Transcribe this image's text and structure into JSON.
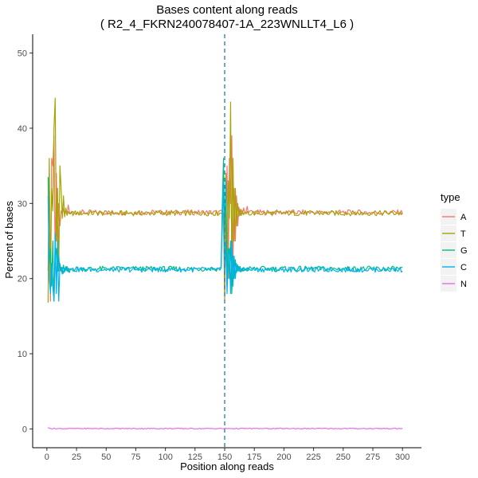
{
  "chart_data": {
    "type": "line",
    "title": "Bases content along reads",
    "subtitle": "( R2_4_FKRN240078407-1A_223WNLLT4_L6 )",
    "xlabel": "Position along reads",
    "ylabel": "Percent of bases",
    "xlim": [
      -12,
      316
    ],
    "ylim": [
      -2.5,
      52.5
    ],
    "x_ticks": [
      0,
      25,
      50,
      75,
      100,
      125,
      150,
      175,
      200,
      225,
      250,
      275,
      300
    ],
    "y_ticks": [
      0,
      10,
      20,
      30,
      40,
      50
    ],
    "vline_x": 150,
    "grid": false,
    "legend": {
      "title": "type",
      "position": "right"
    },
    "series": [
      {
        "name": "A",
        "color": "#F8766D",
        "start": [
          [
            1,
            21
          ],
          [
            2,
            33
          ],
          [
            3,
            17
          ],
          [
            4,
            36
          ],
          [
            5,
            35
          ],
          [
            6,
            39
          ],
          [
            7,
            22
          ],
          [
            8,
            34
          ],
          [
            9,
            24
          ],
          [
            10,
            30
          ],
          [
            11,
            27
          ],
          [
            12,
            29
          ],
          [
            13,
            28.6
          ],
          [
            14,
            29.3
          ],
          [
            15,
            28.4
          ],
          [
            16,
            29
          ],
          [
            17,
            28.5
          ],
          [
            18,
            29.8
          ],
          [
            19,
            28.9
          ],
          [
            20,
            28.6
          ]
        ],
        "mid": [
          [
            150,
            18
          ],
          [
            151,
            27
          ],
          [
            152,
            35
          ],
          [
            153,
            20
          ],
          [
            154,
            36
          ],
          [
            155,
            30
          ],
          [
            156,
            39
          ],
          [
            157,
            22
          ],
          [
            158,
            32
          ],
          [
            159,
            25
          ],
          [
            160,
            31
          ],
          [
            161,
            27
          ],
          [
            162,
            29.5
          ],
          [
            163,
            28.4
          ],
          [
            164,
            29.2
          ],
          [
            165,
            28.6
          ],
          [
            166,
            29.4
          ],
          [
            167,
            28.7
          ],
          [
            168,
            28.9
          ],
          [
            169,
            29.6
          ],
          [
            170,
            28.7
          ]
        ],
        "base": 28.8
      },
      {
        "name": "T",
        "color": "#A3A500",
        "start": [
          [
            1,
            16.8
          ],
          [
            2,
            36
          ],
          [
            3,
            20
          ],
          [
            4,
            32
          ],
          [
            5,
            29
          ],
          [
            6,
            40
          ],
          [
            7,
            44
          ],
          [
            8,
            25
          ],
          [
            9,
            32
          ],
          [
            10,
            21
          ],
          [
            11,
            35
          ],
          [
            12,
            32
          ],
          [
            13,
            28
          ],
          [
            14,
            31
          ],
          [
            15,
            28.2
          ],
          [
            16,
            29.4
          ],
          [
            17,
            28.4
          ],
          [
            18,
            28.9
          ],
          [
            19,
            28.6
          ],
          [
            20,
            28.7
          ]
        ],
        "mid": [
          [
            150,
            17
          ],
          [
            151,
            34
          ],
          [
            152,
            21
          ],
          [
            153,
            33
          ],
          [
            154,
            28
          ],
          [
            155,
            43.5
          ],
          [
            156,
            20
          ],
          [
            157,
            36
          ],
          [
            158,
            25
          ],
          [
            159,
            32
          ],
          [
            160,
            27
          ],
          [
            161,
            30
          ],
          [
            162,
            28.3
          ],
          [
            163,
            29.2
          ],
          [
            164,
            28.4
          ],
          [
            165,
            29
          ],
          [
            166,
            28.5
          ],
          [
            167,
            28.8
          ],
          [
            168,
            28.6
          ],
          [
            169,
            28.9
          ],
          [
            170,
            28.6
          ]
        ],
        "base": 28.7
      },
      {
        "name": "G",
        "color": "#00BF7D",
        "start": [
          [
            1,
            33.5
          ],
          [
            2,
            22
          ],
          [
            3,
            24
          ],
          [
            4,
            19
          ],
          [
            5,
            25
          ],
          [
            6,
            17
          ],
          [
            7,
            23
          ],
          [
            8,
            24
          ],
          [
            9,
            21
          ],
          [
            10,
            23
          ],
          [
            11,
            21
          ],
          [
            12,
            21.5
          ],
          [
            13,
            20.6
          ],
          [
            14,
            21.8
          ],
          [
            15,
            20.9
          ],
          [
            16,
            21.6
          ],
          [
            17,
            21
          ],
          [
            18,
            21.4
          ],
          [
            19,
            20.8
          ],
          [
            20,
            21.3
          ]
        ],
        "mid": [
          [
            148,
            30
          ],
          [
            149,
            36
          ],
          [
            150,
            26
          ],
          [
            151,
            33
          ],
          [
            152,
            19
          ],
          [
            153,
            24
          ],
          [
            154,
            20
          ],
          [
            155,
            25
          ],
          [
            156,
            18
          ],
          [
            157,
            23
          ],
          [
            158,
            20
          ],
          [
            159,
            22.5
          ],
          [
            160,
            20.8
          ],
          [
            161,
            21.8
          ],
          [
            162,
            21
          ],
          [
            163,
            21.6
          ],
          [
            164,
            20.9
          ],
          [
            165,
            21.4
          ],
          [
            166,
            21
          ],
          [
            167,
            21.3
          ],
          [
            168,
            21.1
          ]
        ],
        "base": 21.3
      },
      {
        "name": "C",
        "color": "#00B0F6",
        "start": [
          [
            1,
            31
          ],
          [
            2,
            20
          ],
          [
            3,
            18
          ],
          [
            4,
            22
          ],
          [
            5,
            19
          ],
          [
            6,
            17
          ],
          [
            7,
            26
          ],
          [
            8,
            18
          ],
          [
            9,
            25
          ],
          [
            10,
            17
          ],
          [
            11,
            22
          ],
          [
            12,
            21
          ],
          [
            13,
            21.5
          ],
          [
            14,
            20.7
          ],
          [
            15,
            21.4
          ],
          [
            16,
            21.1
          ],
          [
            17,
            21.6
          ],
          [
            18,
            20.9
          ],
          [
            19,
            21.3
          ],
          [
            20,
            21.2
          ]
        ],
        "mid": [
          [
            148,
            27
          ],
          [
            149,
            33
          ],
          [
            150,
            21
          ],
          [
            151,
            25
          ],
          [
            152,
            18
          ],
          [
            153,
            23
          ],
          [
            154,
            24
          ],
          [
            155,
            18
          ],
          [
            156,
            25
          ],
          [
            157,
            19
          ],
          [
            158,
            23
          ],
          [
            159,
            20
          ],
          [
            160,
            22
          ],
          [
            161,
            21
          ],
          [
            162,
            21.6
          ],
          [
            163,
            20.9
          ],
          [
            164,
            21.3
          ],
          [
            165,
            21
          ],
          [
            166,
            21.5
          ],
          [
            167,
            21.1
          ],
          [
            168,
            21.3
          ]
        ],
        "base": 21.2
      },
      {
        "name": "N",
        "color": "#E76BF3",
        "start": [
          [
            1,
            0.2
          ],
          [
            2,
            0.1
          ],
          [
            3,
            0.05
          ]
        ],
        "mid": [],
        "base": 0.05
      }
    ]
  }
}
